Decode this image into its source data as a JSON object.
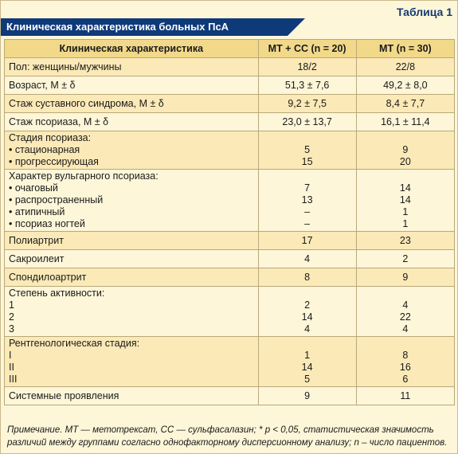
{
  "table_label": "Таблица 1",
  "title": "Клиническая характеристика больных ПсА",
  "headers": [
    "Клиническая характеристика",
    "МТ + СС (n = 20)",
    "МТ (n = 30)"
  ],
  "rows": [
    {
      "lines": [
        "Пол: женщины/мужчины"
      ],
      "c1": [
        "18/2"
      ],
      "c2": [
        "22/8"
      ]
    },
    {
      "lines": [
        "Возраст, M ± δ"
      ],
      "c1": [
        "51,3 ± 7,6"
      ],
      "c2": [
        "49,2 ± 8,0"
      ]
    },
    {
      "lines": [
        "Стаж суставного синдрома, M ± δ"
      ],
      "c1": [
        "9,2 ± 7,5"
      ],
      "c2": [
        "8,4 ± 7,7"
      ]
    },
    {
      "lines": [
        "Стаж псориаза, M ± δ"
      ],
      "c1": [
        "23,0 ± 13,7"
      ],
      "c2": [
        "16,1 ± 11,4"
      ]
    },
    {
      "lines": [
        "Стадия псориаза:",
        "• стационарная",
        "• прогрессирующая"
      ],
      "c1": [
        "",
        "5",
        "15"
      ],
      "c2": [
        "",
        "9",
        "20"
      ]
    },
    {
      "lines": [
        "Характер вульгарного псориаза:",
        "• очаговый",
        "• распространенный",
        "• атипичный",
        "• псориаз ногтей"
      ],
      "c1": [
        "",
        "7",
        "13",
        "–",
        "–"
      ],
      "c2": [
        "",
        "14",
        "14",
        "1",
        "1"
      ]
    },
    {
      "lines": [
        "Полиартрит"
      ],
      "c1": [
        "17"
      ],
      "c2": [
        "23"
      ]
    },
    {
      "lines": [
        "Сакроилеит"
      ],
      "c1": [
        "4"
      ],
      "c2": [
        "2"
      ]
    },
    {
      "lines": [
        "Спондилоартрит"
      ],
      "c1": [
        "8"
      ],
      "c2": [
        "9"
      ]
    },
    {
      "lines": [
        "Степень активности:",
        "1",
        "2",
        "3"
      ],
      "c1": [
        "",
        "2",
        "14",
        "4"
      ],
      "c2": [
        "",
        "4",
        "22",
        "4"
      ]
    },
    {
      "lines": [
        "Рентгенологическая стадия:",
        "I",
        "II",
        "III"
      ],
      "c1": [
        "",
        "1",
        "14",
        "5"
      ],
      "c2": [
        "",
        "8",
        "16",
        "6"
      ]
    },
    {
      "lines": [
        "Системные проявления"
      ],
      "c1": [
        "9"
      ],
      "c2": [
        "11"
      ]
    }
  ],
  "note": "Примечание. МТ — метотрексат, СС — сульфасалазин; * p < 0,05, статистическая значимость различий между группами согласно однофакторному дисперсионному анализу; n – число пациентов."
}
